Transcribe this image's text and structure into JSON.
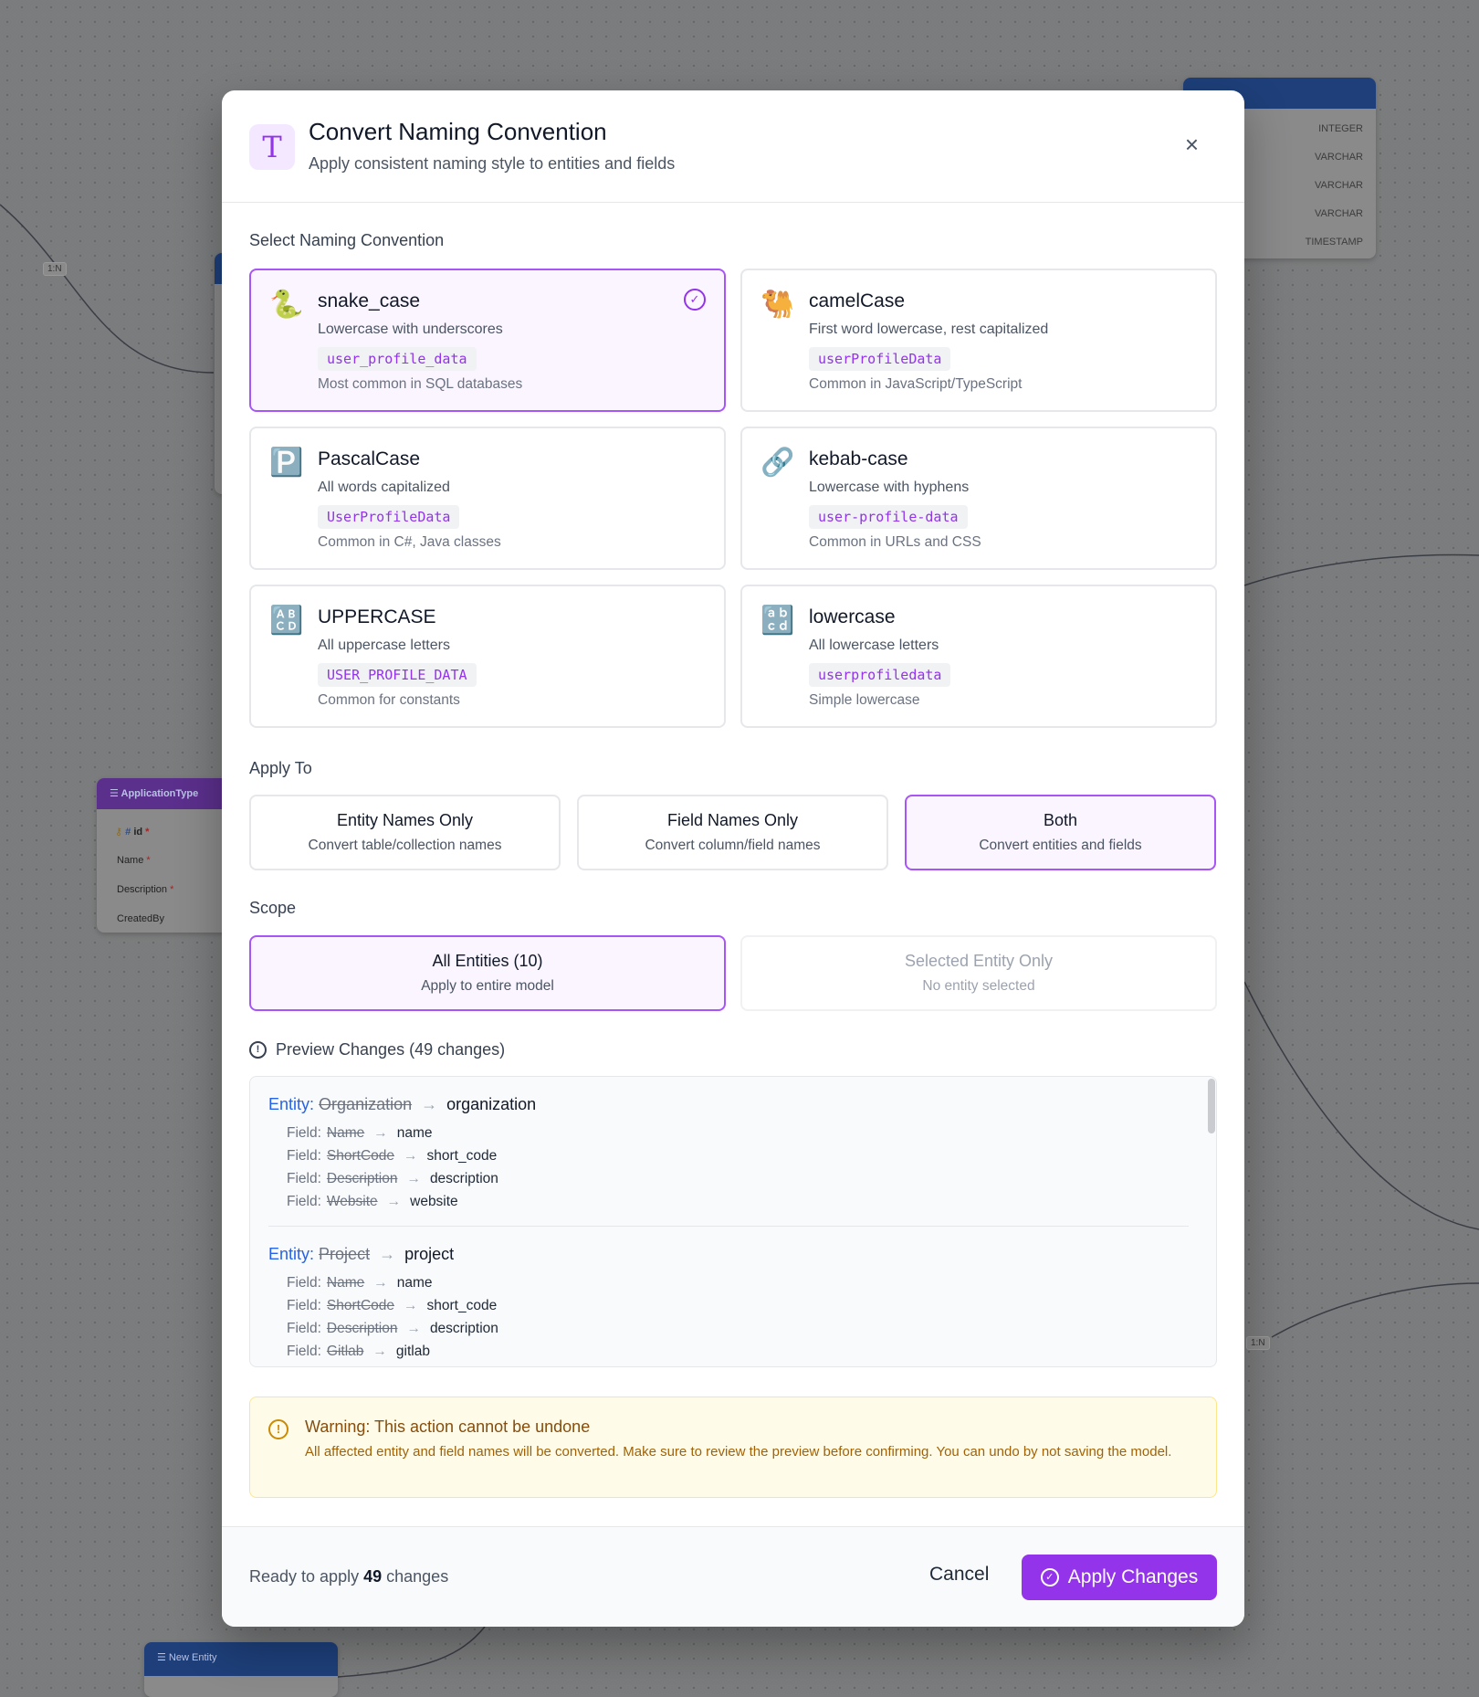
{
  "background": {
    "relation_labels": [
      "1:N",
      "1:N"
    ],
    "top_right_node": {
      "types": [
        "INTEGER",
        "VARCHAR",
        "VARCHAR",
        "VARCHAR",
        "TIMESTAMP"
      ],
      "partial_field": "on"
    },
    "application_type_node": {
      "title": "ApplicationType",
      "fields": [
        "id",
        "Name",
        "Description",
        "CreatedBy"
      ]
    },
    "new_entity_node": {
      "title": "New Entity"
    }
  },
  "modal": {
    "icon": "T",
    "title": "Convert Naming Convention",
    "subtitle": "Apply consistent naming style to entities and fields",
    "close_icon": "×",
    "select_label": "Select Naming Convention",
    "conventions": [
      {
        "emoji": "🐍",
        "title": "snake_case",
        "desc": "Lowercase with underscores",
        "example": "user_profile_data",
        "note": "Most common in SQL databases",
        "selected": true
      },
      {
        "emoji": "🐫",
        "title": "camelCase",
        "desc": "First word lowercase, rest capitalized",
        "example": "userProfileData",
        "note": "Common in JavaScript/TypeScript",
        "selected": false
      },
      {
        "emoji": "🅿️",
        "title": "PascalCase",
        "desc": "All words capitalized",
        "example": "UserProfileData",
        "note": "Common in C#, Java classes",
        "selected": false
      },
      {
        "emoji": "🔗",
        "title": "kebab-case",
        "desc": "Lowercase with hyphens",
        "example": "user-profile-data",
        "note": "Common in URLs and CSS",
        "selected": false
      },
      {
        "emoji": "🔠",
        "title": "UPPERCASE",
        "desc": "All uppercase letters",
        "example": "USER_PROFILE_DATA",
        "note": "Common for constants",
        "selected": false
      },
      {
        "emoji": "🔡",
        "title": "lowercase",
        "desc": "All lowercase letters",
        "example": "userprofiledata",
        "note": "Simple lowercase",
        "selected": false
      }
    ],
    "apply_to_label": "Apply To",
    "apply_to": [
      {
        "title": "Entity Names Only",
        "desc": "Convert table/collection names",
        "selected": false
      },
      {
        "title": "Field Names Only",
        "desc": "Convert column/field names",
        "selected": false
      },
      {
        "title": "Both",
        "desc": "Convert entities and fields",
        "selected": true
      }
    ],
    "scope_label": "Scope",
    "scope": [
      {
        "title": "All Entities (10)",
        "desc": "Apply to entire model",
        "selected": true,
        "disabled": false
      },
      {
        "title": "Selected Entity Only",
        "desc": "No entity selected",
        "selected": false,
        "disabled": true
      }
    ],
    "preview_label": "Preview Changes (49 changes)",
    "preview": [
      {
        "entity_label": "Entity:",
        "old": "Organization",
        "new": "organization",
        "fields": [
          {
            "old": "Name",
            "new": "name"
          },
          {
            "old": "ShortCode",
            "new": "short_code"
          },
          {
            "old": "Description",
            "new": "description"
          },
          {
            "old": "Website",
            "new": "website"
          }
        ]
      },
      {
        "entity_label": "Entity:",
        "old": "Project",
        "new": "project",
        "fields": [
          {
            "old": "Name",
            "new": "name"
          },
          {
            "old": "ShortCode",
            "new": "short_code"
          },
          {
            "old": "Description",
            "new": "description"
          },
          {
            "old": "Gitlab",
            "new": "gitlab"
          }
        ]
      }
    ],
    "field_label": "Field:",
    "warning": {
      "title": "Warning: This action cannot be undone",
      "text": "All affected entity and field names will be converted. Make sure to review the preview before confirming. You can undo by not saving the model."
    },
    "footer": {
      "ready_prefix": "Ready to apply",
      "count": "49",
      "ready_suffix": "changes",
      "cancel": "Cancel",
      "apply": "Apply Changes"
    }
  },
  "colors": {
    "accent": "#9333ea",
    "entity_label": "#2563eb",
    "warning": "#854d0e"
  }
}
